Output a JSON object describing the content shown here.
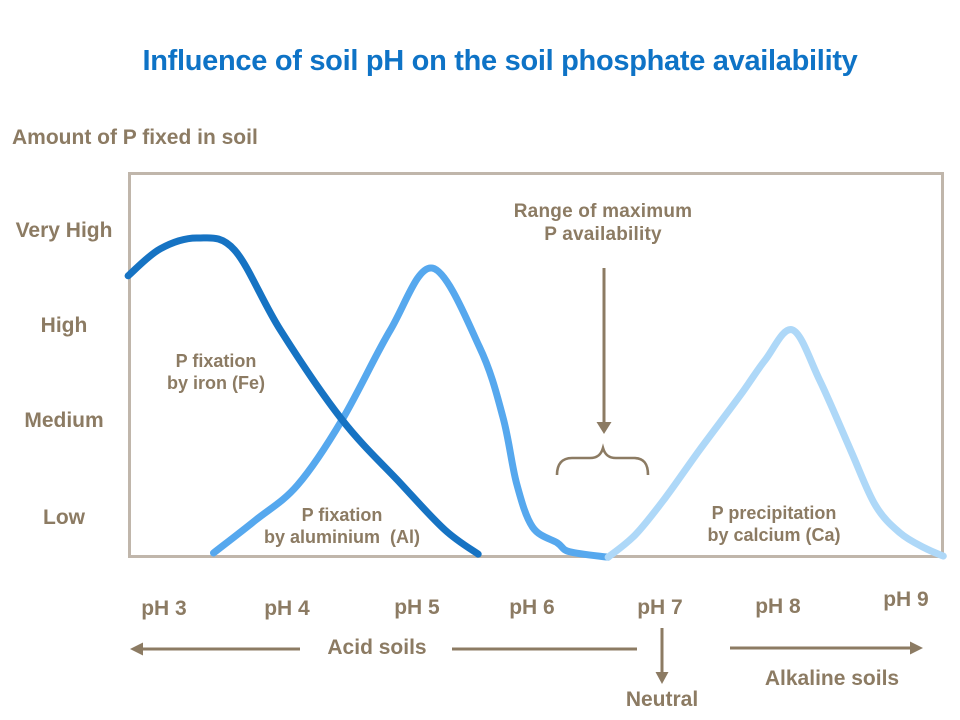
{
  "title": "Influence of soil pH on the soil phosphate availability",
  "colors": {
    "title": "#0e73c6",
    "brown": "#8c7b63",
    "box_border": "#c0b6ab",
    "fe": "#1673c3",
    "al": "#56a8ee",
    "ca": "#aed8f8"
  },
  "labels": {
    "fe": "P fixation\nby iron (Fe)",
    "al": "P fixation\nby aluminium  (Al)",
    "ca": "P precipitation\nby calcium (Ca)",
    "range": "Range of maximum\nP availability",
    "acid": "Acid soils",
    "neutral": "Neutral",
    "alkaline": "Alkaline soils"
  },
  "chart_data": {
    "type": "line",
    "title": "Influence of soil pH on the soil phosphate availability",
    "xlabel": "pH",
    "ylabel": "Amount of P fixed in soil",
    "y_tick_labels": [
      "Very High",
      "High",
      "Medium",
      "Low"
    ],
    "x_tick_labels": [
      "pH 3",
      "pH 4",
      "pH 5",
      "pH 6",
      "pH 7",
      "pH 8",
      "pH 9"
    ],
    "x_range_ph": [
      2.7,
      9.3
    ],
    "y_axis_qualitative_scale": {
      "Low": 1.0,
      "Medium": 3.55,
      "High": 6.0,
      "Very High": 8.45,
      "axis_max": 10
    },
    "grid": false,
    "legend": "labels placed beside each curve",
    "annotations": {
      "range_of_max_P_availability_ph": [
        6.2,
        6.9
      ],
      "acid_soils_region": "pH < 7",
      "neutral_point_ph": 7,
      "alkaline_soils_region": "pH > 7"
    },
    "series": [
      {
        "name": "P fixation by iron (Fe)",
        "color": "#1673c3",
        "peak_ph": 3.3,
        "points": [
          [
            2.71,
            7.31
          ],
          [
            2.97,
            8.01
          ],
          [
            3.27,
            8.29
          ],
          [
            3.57,
            7.98
          ],
          [
            3.94,
            5.91
          ],
          [
            4.44,
            3.58
          ],
          [
            4.91,
            1.94
          ],
          [
            5.27,
            0.73
          ],
          [
            5.54,
            0.1
          ]
        ]
      },
      {
        "name": "P fixation by aluminium (Al)",
        "color": "#56a8ee",
        "peak_ph": 5.2,
        "points": [
          [
            3.4,
            0.13
          ],
          [
            3.74,
            0.98
          ],
          [
            4.08,
            1.89
          ],
          [
            4.44,
            3.58
          ],
          [
            4.83,
            5.91
          ],
          [
            5.17,
            7.51
          ],
          [
            5.55,
            5.47
          ],
          [
            5.74,
            3.65
          ],
          [
            5.85,
            1.94
          ],
          [
            5.98,
            0.8
          ],
          [
            6.18,
            0.39
          ],
          [
            6.28,
            0.16
          ],
          [
            6.59,
            0.02
          ]
        ]
      },
      {
        "name": "P precipitation by calcium (Ca)",
        "color": "#aed8f8",
        "peak_ph": 8.1,
        "points": [
          [
            6.59,
            0.02
          ],
          [
            6.81,
            0.6
          ],
          [
            7.05,
            1.55
          ],
          [
            7.33,
            2.8
          ],
          [
            7.66,
            4.22
          ],
          [
            7.86,
            5.13
          ],
          [
            8.08,
            5.91
          ],
          [
            8.3,
            4.61
          ],
          [
            8.55,
            2.8
          ],
          [
            8.75,
            1.37
          ],
          [
            8.95,
            0.65
          ],
          [
            9.15,
            0.26
          ],
          [
            9.3,
            0.05
          ]
        ]
      }
    ]
  }
}
